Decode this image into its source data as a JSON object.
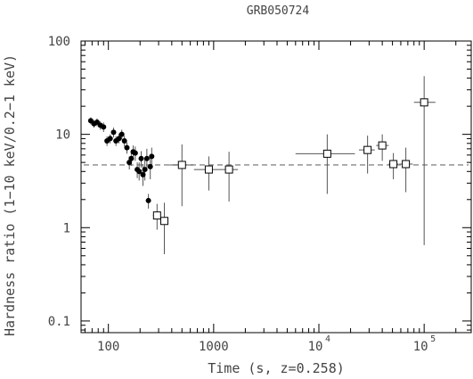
{
  "chart_data": {
    "type": "scatter",
    "title": "GRB050724",
    "xlabel": "Time (s, z=0.258)",
    "ylabel": "Hardness ratio (1−10 keV/0.2−1 keV)",
    "xscale": "log",
    "yscale": "log",
    "xlim": [
      55,
      280000
    ],
    "ylim": [
      0.075,
      100
    ],
    "x_major_ticks": [
      {
        "value": 100,
        "base": "100",
        "exp": ""
      },
      {
        "value": 1000,
        "base": "1000",
        "exp": ""
      },
      {
        "value": 10000,
        "base": "10",
        "exp": "4"
      },
      {
        "value": 100000,
        "base": "10",
        "exp": "5"
      }
    ],
    "y_major_ticks": [
      {
        "value": 0.1,
        "label": "0.1"
      },
      {
        "value": 1,
        "label": "1"
      },
      {
        "value": 10,
        "label": "10"
      },
      {
        "value": 100,
        "label": "100"
      }
    ],
    "reference_line": 4.7,
    "grid": false,
    "series": [
      {
        "marker": "filled-circle",
        "points": [
          {
            "x": 68,
            "y": 14,
            "ylo": 12.8,
            "yhi": 15.2
          },
          {
            "x": 73,
            "y": 13,
            "ylo": 11.8,
            "yhi": 14.2
          },
          {
            "x": 78,
            "y": 13.5,
            "ylo": 12.2,
            "yhi": 14.8
          },
          {
            "x": 84,
            "y": 12.5,
            "ylo": 11.2,
            "yhi": 13.8
          },
          {
            "x": 90,
            "y": 12,
            "ylo": 10.6,
            "yhi": 13.4
          },
          {
            "x": 97,
            "y": 8.5,
            "ylo": 7.5,
            "yhi": 9.5
          },
          {
            "x": 104,
            "y": 9,
            "ylo": 8,
            "yhi": 10
          },
          {
            "x": 112,
            "y": 10.5,
            "ylo": 9.3,
            "yhi": 11.8
          },
          {
            "x": 118,
            "y": 8.5,
            "ylo": 7.5,
            "yhi": 9.5
          },
          {
            "x": 126,
            "y": 9,
            "ylo": 8,
            "yhi": 10.2
          },
          {
            "x": 134,
            "y": 10,
            "ylo": 8.8,
            "yhi": 11.2
          },
          {
            "x": 142,
            "y": 8.5,
            "ylo": 7.4,
            "yhi": 9.6
          },
          {
            "x": 150,
            "y": 7.2,
            "ylo": 6.2,
            "yhi": 8.2
          },
          {
            "x": 158,
            "y": 5,
            "ylo": 4.2,
            "yhi": 5.8
          },
          {
            "x": 165,
            "y": 5.5,
            "ylo": 4.6,
            "yhi": 6.4
          },
          {
            "x": 172,
            "y": 6.5,
            "ylo": 5.4,
            "yhi": 7.6
          },
          {
            "x": 180,
            "y": 6.3,
            "ylo": 5.2,
            "yhi": 7.4
          },
          {
            "x": 188,
            "y": 4.2,
            "ylo": 3.4,
            "yhi": 5
          },
          {
            "x": 196,
            "y": 4,
            "ylo": 3.2,
            "yhi": 5
          },
          {
            "x": 205,
            "y": 5.5,
            "ylo": 4.4,
            "yhi": 6.6
          },
          {
            "x": 213,
            "y": 3.7,
            "ylo": 2.8,
            "yhi": 4.8
          },
          {
            "x": 222,
            "y": 4.2,
            "ylo": 3.2,
            "yhi": 5.5
          },
          {
            "x": 232,
            "y": 5.5,
            "ylo": 4.2,
            "yhi": 7
          },
          {
            "x": 240,
            "y": 1.95,
            "ylo": 1.6,
            "yhi": 2.3
          },
          {
            "x": 250,
            "y": 4.5,
            "ylo": 3.3,
            "yhi": 5.8
          },
          {
            "x": 258,
            "y": 5.8,
            "ylo": 4.4,
            "yhi": 7.2
          }
        ]
      },
      {
        "marker": "open-square",
        "points": [
          {
            "x": 290,
            "y": 1.35,
            "xlo": 265,
            "xhi": 315,
            "ylo": 0.95,
            "yhi": 1.8
          },
          {
            "x": 340,
            "y": 1.18,
            "xlo": 315,
            "xhi": 370,
            "ylo": 0.52,
            "yhi": 1.85
          },
          {
            "x": 500,
            "y": 4.7,
            "xlo": 380,
            "xhi": 640,
            "ylo": 1.7,
            "yhi": 7.8
          },
          {
            "x": 900,
            "y": 4.2,
            "xlo": 650,
            "xhi": 1150,
            "ylo": 2.5,
            "yhi": 5.8
          },
          {
            "x": 1400,
            "y": 4.2,
            "xlo": 1150,
            "xhi": 1700,
            "ylo": 1.9,
            "yhi": 6.5
          },
          {
            "x": 12000,
            "y": 6.2,
            "xlo": 6000,
            "xhi": 22000,
            "ylo": 2.3,
            "yhi": 10
          },
          {
            "x": 29000,
            "y": 6.8,
            "xlo": 24000,
            "xhi": 34000,
            "ylo": 3.8,
            "yhi": 9.7
          },
          {
            "x": 40000,
            "y": 7.6,
            "xlo": 35000,
            "xhi": 46000,
            "ylo": 5.2,
            "yhi": 10
          },
          {
            "x": 51000,
            "y": 4.8,
            "xlo": 46000,
            "xhi": 57000,
            "ylo": 3.3,
            "yhi": 6.3
          },
          {
            "x": 67000,
            "y": 4.8,
            "xlo": 58000,
            "xhi": 78000,
            "ylo": 2.4,
            "yhi": 7.2
          },
          {
            "x": 100000,
            "y": 22,
            "xlo": 80000,
            "xhi": 128000,
            "ylo": 0.65,
            "yhi": 42
          }
        ]
      }
    ]
  }
}
